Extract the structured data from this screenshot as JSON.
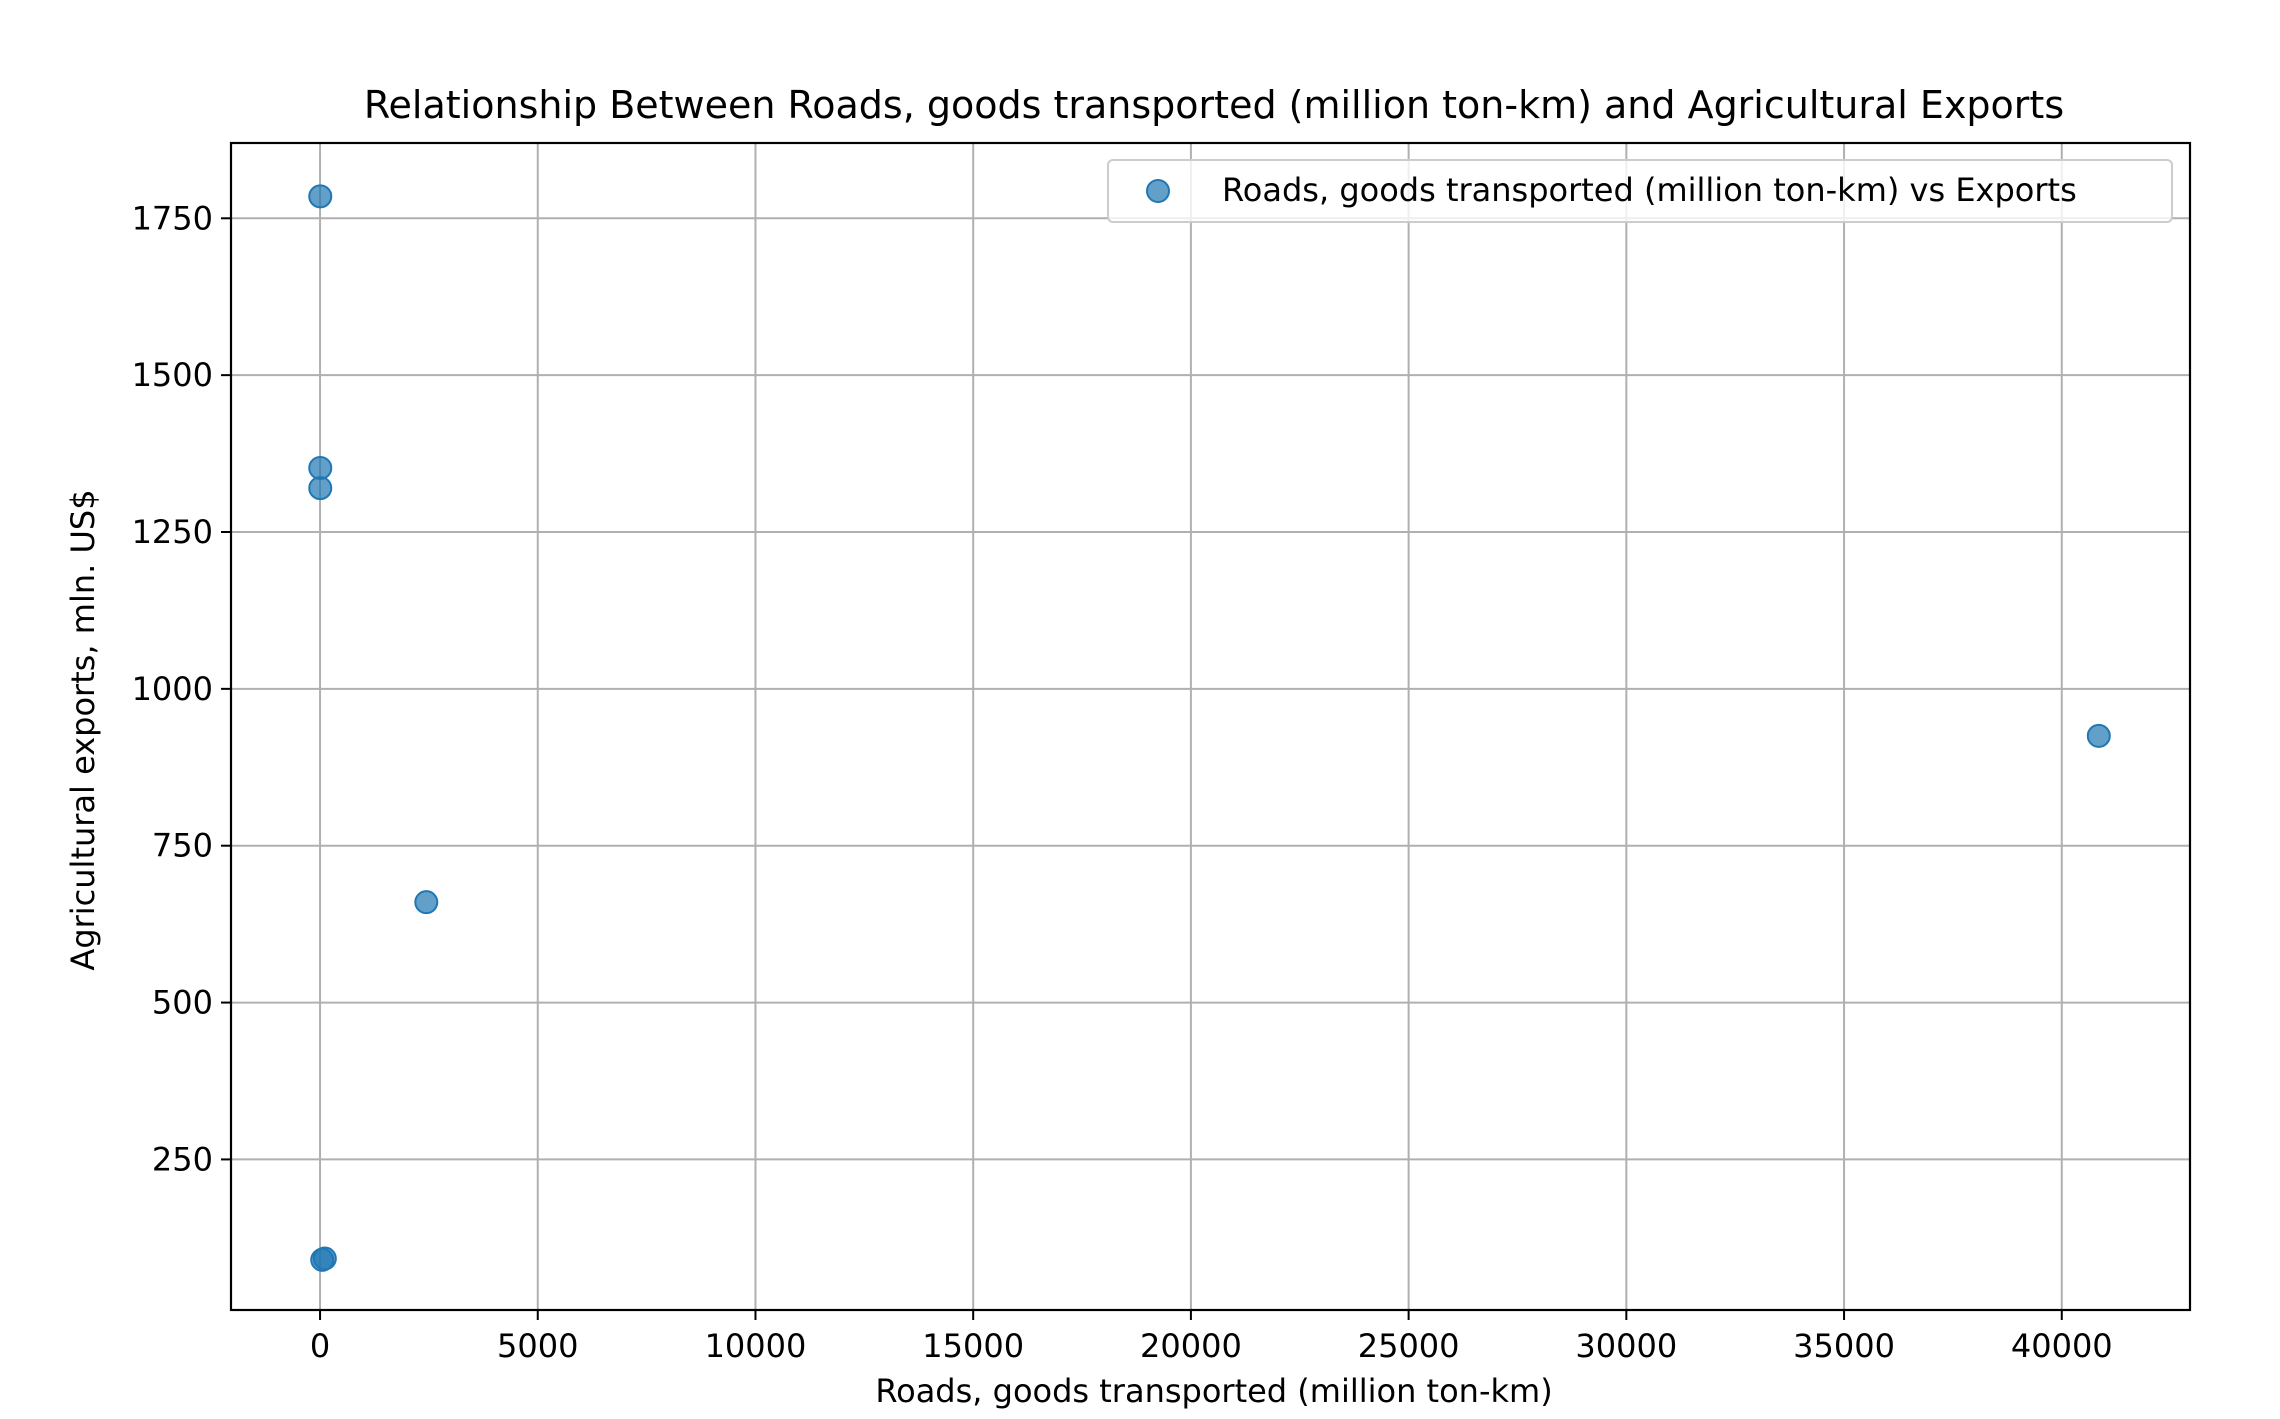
{
  "chart_data": {
    "type": "scatter",
    "title": "Relationship Between Roads, goods transported (million ton-km) and Agricultural Exports",
    "xlabel": "Roads, goods transported (million ton-km)",
    "ylabel": "Agricultural exports, mln. US$",
    "xlim": [
      -2045,
      42945
    ],
    "ylim": [
      10,
      1870
    ],
    "xticks": [
      0,
      5000,
      10000,
      15000,
      20000,
      25000,
      30000,
      35000,
      40000
    ],
    "yticks": [
      250,
      500,
      750,
      1000,
      1250,
      1500,
      1750
    ],
    "grid": true,
    "legend_position": "top-right",
    "series": [
      {
        "name": "Roads, goods transported (million ton-km) vs Exports",
        "color": "#1f77b4",
        "points": [
          {
            "x": 5,
            "y": 1785
          },
          {
            "x": 5,
            "y": 1352
          },
          {
            "x": 5,
            "y": 1320
          },
          {
            "x": 2440,
            "y": 660
          },
          {
            "x": 40850,
            "y": 925
          },
          {
            "x": 50,
            "y": 90
          },
          {
            "x": 110,
            "y": 92
          }
        ]
      }
    ]
  }
}
